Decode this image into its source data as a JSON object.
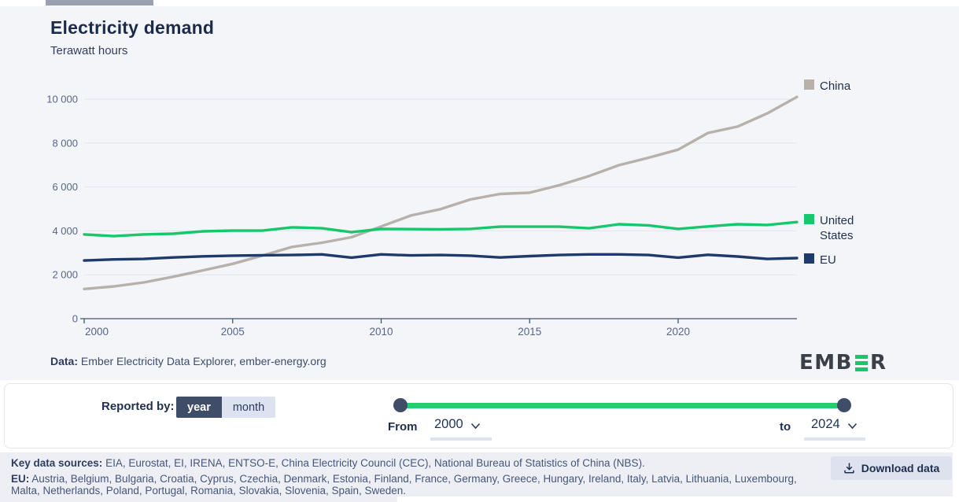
{
  "header": {
    "title": "Electricity demand",
    "subtitle": "Terawatt hours"
  },
  "chart_data": {
    "type": "line",
    "title": "Electricity demand",
    "ylabel": "Terawatt hours",
    "x": [
      2000,
      2001,
      2002,
      2003,
      2004,
      2005,
      2006,
      2007,
      2008,
      2009,
      2010,
      2011,
      2012,
      2013,
      2014,
      2015,
      2016,
      2017,
      2018,
      2019,
      2020,
      2021,
      2022,
      2023,
      2024
    ],
    "series": [
      {
        "name": "China",
        "color": "#b7b0ab",
        "values": [
          1350,
          1470,
          1650,
          1910,
          2200,
          2500,
          2870,
          3270,
          3460,
          3710,
          4200,
          4700,
          4990,
          5430,
          5680,
          5740,
          6080,
          6500,
          6990,
          7330,
          7700,
          8460,
          8750,
          9350,
          10100
        ]
      },
      {
        "name": "United States",
        "color": "#17c76c",
        "values": [
          3840,
          3760,
          3840,
          3870,
          3980,
          4010,
          4010,
          4160,
          4120,
          3940,
          4090,
          4080,
          4070,
          4090,
          4190,
          4190,
          4190,
          4120,
          4300,
          4250,
          4090,
          4200,
          4300,
          4270,
          4400
        ]
      },
      {
        "name": "EU",
        "color": "#1e3a6d",
        "values": [
          2650,
          2700,
          2720,
          2790,
          2840,
          2870,
          2890,
          2900,
          2930,
          2780,
          2930,
          2880,
          2900,
          2870,
          2790,
          2850,
          2900,
          2930,
          2930,
          2900,
          2780,
          2910,
          2830,
          2720,
          2760
        ]
      }
    ],
    "ylim": [
      0,
      10000
    ],
    "yticks": [
      0,
      2000,
      4000,
      6000,
      8000,
      10000
    ],
    "ytick_labels": [
      "0",
      "2 000",
      "4 000",
      "6 000",
      "8 000",
      "10 000"
    ],
    "xticks": [
      2000,
      2005,
      2010,
      2015,
      2020
    ],
    "grid": true,
    "legend_position": "right"
  },
  "credit": {
    "label": "Data:",
    "text": "Ember Electricity Data Explorer, ember-energy.org"
  },
  "logo": {
    "text_left": "EMB",
    "text_right": "R"
  },
  "controls": {
    "reported_by_label": "Reported by:",
    "toggle": {
      "year": "year",
      "month": "month",
      "selected": "year"
    },
    "from_label": "From",
    "to_label": "to",
    "from_value": "2000",
    "to_value": "2024",
    "slider": {
      "min": 2000,
      "max": 2024,
      "from": 2000,
      "to": 2024
    }
  },
  "footer": {
    "sources_label": "Key data sources:",
    "sources_text": "EIA, Eurostat, EI, IRENA, ENTSO-E, China Electricity Council (CEC), National Bureau of Statistics of China (NBS).",
    "eu_label": "EU:",
    "eu_text": "Austria, Belgium, Bulgaria, Croatia, Cyprus, Czechia, Denmark, Estonia, Finland, France, Germany, Greece, Hungary, Ireland, Italy, Latvia, Lithuania, Luxembourg, Malta, Netherlands, Poland, Portugal, Romania, Slovakia, Slovenia, Spain, Sweden.",
    "download_label": "Download data"
  },
  "colors": {
    "accent_green": "#1fd06e",
    "navy": "#1e2f4d",
    "chart_background": "#f4f5f9",
    "footer_background": "#edeff5"
  }
}
